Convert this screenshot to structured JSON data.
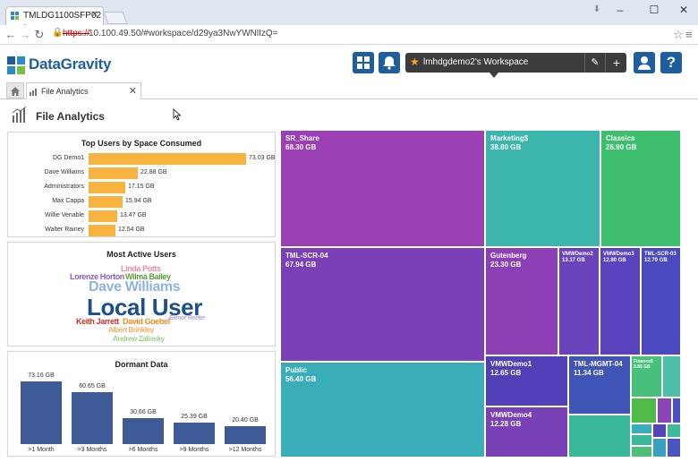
{
  "browser": {
    "tab_title": "TMLDG1100SFP02 -",
    "url_scheme": "https://",
    "url_rest": "10.100.49.50/#workspace/d29ya3NwYWNlIzQ="
  },
  "app": {
    "logo_text": "DataGravity",
    "workspace_name": "lmhdgdemo2's Workspace",
    "tab_label": "File Analytics",
    "page_title": "File Analytics"
  },
  "top_users": {
    "title": "Top Users by Space Consumed",
    "bars": [
      {
        "name": "DG Demo1",
        "value": 73.03,
        "label": "73.03 GB"
      },
      {
        "name": "Dave Williams",
        "value": 22.88,
        "label": "22.88 GB"
      },
      {
        "name": "Administrators",
        "value": 17.15,
        "label": "17.15 GB"
      },
      {
        "name": "Max Cappa",
        "value": 15.94,
        "label": "15.94 GB"
      },
      {
        "name": "Willie Venable",
        "value": 13.47,
        "label": "13.47 GB"
      },
      {
        "name": "Walter Rainey",
        "value": 12.54,
        "label": "12.54 GB"
      }
    ]
  },
  "active_users": {
    "title": "Most Active Users",
    "words": [
      {
        "text": "Linda Potts",
        "color": "#f28aa8"
      },
      {
        "text": "Lorenze Horton",
        "color": "#8e5cc2"
      },
      {
        "text": "Wilma Bailey",
        "color": "#5a9f3a"
      },
      {
        "text": "Dave Williams",
        "color": "#8fb4dd"
      },
      {
        "text": "Local User",
        "color": "#1c4f8c"
      },
      {
        "text": "Keith Jarrett",
        "color": "#d0342c"
      },
      {
        "text": "David Goebel",
        "color": "#f08a24"
      },
      {
        "text": "Elenor Reeter",
        "color": "#b7a9d6"
      },
      {
        "text": "Albert Brinkley",
        "color": "#f5ac5b"
      },
      {
        "text": "Andrew Zalinsky",
        "color": "#9fd08a"
      }
    ]
  },
  "dormant": {
    "title": "Dormant Data",
    "bars": [
      {
        "category": ">1 Month",
        "value": 73.16,
        "label": "73.16 GB"
      },
      {
        "category": ">3 Months",
        "value": 60.65,
        "label": "60.65 GB"
      },
      {
        "category": ">6 Months",
        "value": 30.66,
        "label": "30.66 GB"
      },
      {
        "category": ">9 Months",
        "value": 25.39,
        "label": "25.39 GB"
      },
      {
        "category": ">12 Months",
        "value": 20.4,
        "label": "20.40 GB"
      }
    ]
  },
  "treemap": {
    "tiles": [
      {
        "name": "SR_Share",
        "size": "68.30 GB",
        "color": "#9b3fb5"
      },
      {
        "name": "TML-SCR-04",
        "size": "67.94 GB",
        "color": "#7b3fb8"
      },
      {
        "name": "Public",
        "size": "56.40 GB",
        "color": "#3aaeb8"
      },
      {
        "name": "Marketing$",
        "size": "38.80 GB",
        "color": "#3cb6ad"
      },
      {
        "name": "Classics",
        "size": "26.90 GB",
        "color": "#3ebf6d"
      },
      {
        "name": "Gutenberg",
        "size": "23.30 GB",
        "color": "#8d3fb5"
      },
      {
        "name": "VMWDemo2",
        "size": "13.17 GB",
        "color": "#6a42bb"
      },
      {
        "name": "VMWDemo3",
        "size": "12.80 GB",
        "color": "#5a43bd"
      },
      {
        "name": "TML-SCR-03",
        "size": "12.79 GB",
        "color": "#4a49bf"
      },
      {
        "name": "VMWDemo1",
        "size": "12.65 GB",
        "color": "#5240b8"
      },
      {
        "name": "TML-MGMT-04",
        "size": "11.34 GB",
        "color": "#3f55b5"
      },
      {
        "name": "VMWDemo4",
        "size": "12.28 GB",
        "color": "#7a40b6"
      },
      {
        "name": "Finance$",
        "size": "3.89 GB",
        "color": "#46c07a"
      }
    ]
  }
}
